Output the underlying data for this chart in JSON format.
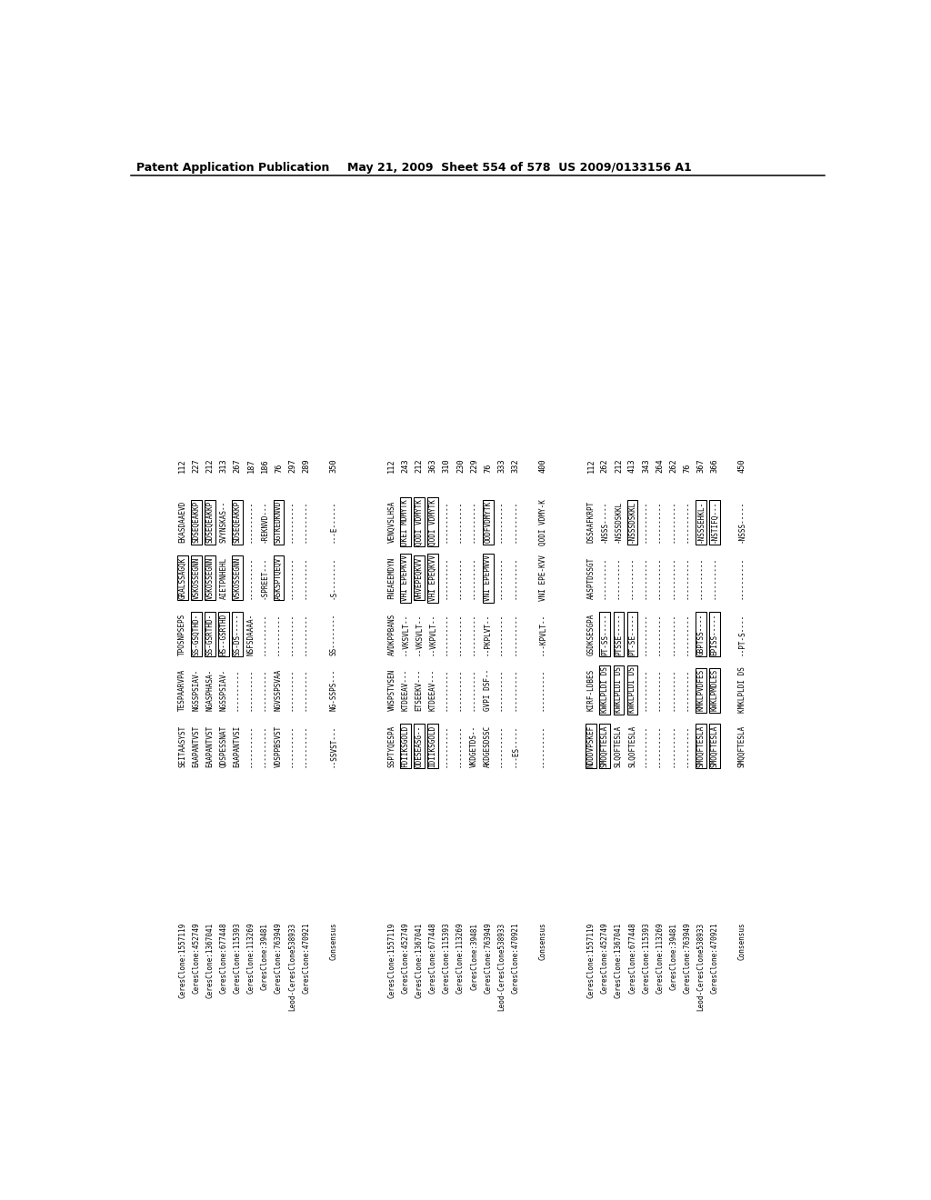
{
  "header_left": "Patent Application Publication",
  "header_right": "May 21, 2009  Sheet 554 of 578  US 2009/0133156 A1",
  "background_color": "#ffffff",
  "text_color": "#000000",
  "blocks": [
    {
      "id": 1,
      "numbers": [
        "112",
        "227",
        "212",
        "313",
        "267",
        "187",
        "186",
        "76",
        "297",
        "289",
        "",
        "350"
      ],
      "labels": [
        "CeresClone:1557119",
        "CeresClone:452749",
        "CeresClone:1367041",
        "CeresClone:677448",
        "CeresClone:115393",
        "CeresClone:113269",
        "CeresClone:39481",
        "CeresClone:763949",
        "Leod-CeresClone538933",
        "CeresClone:470921",
        "",
        "Consensus"
      ],
      "cols": [
        [
          "SEITAASYST",
          "EAAPANTVST",
          "EAAPANTVST",
          "QDSPESSNAT",
          "EAAPANTVSI",
          "----------",
          "----------",
          "VDSPPBSVST",
          "----------",
          "----------",
          "",
          "--SSVST---"
        ],
        [
          "TESPAARVPA",
          "NGSSPSIAV-",
          "NGASPHASA-",
          "NGSSPSIAV-",
          "----------",
          "----------",
          "----------",
          "NGVSSPSVAA",
          "----------",
          "----------",
          "",
          "NG-SSPS---"
        ],
        [
          "TPOSNPSEPS",
          "SS-GSQTHD-",
          "SS-GSRTHD-",
          "HS--GSRTHD",
          "SS-DS-----",
          "NSFSDAAAA-",
          "----------",
          "----------",
          "----------",
          "----------",
          "",
          "SS--------"
        ],
        [
          "GRALSSAGQK",
          "VSKOSSEGNN",
          "VSKOSSEGNN",
          "AIETPNHEHL",
          "VSKOSSEGNN",
          "----------",
          "-SPREET---",
          "ASKSPTQEQV",
          "----------",
          "----------",
          "",
          "-S--------"
        ],
        [
          "EKASDAAEVD",
          "SDSEQEAKKP",
          "SDSEQEAKKP",
          "SVYNSKAS--",
          "SDSEQEAKKP",
          "----------",
          "-REKNVD---",
          "SGTKEDKNVD",
          "----------",
          "----------",
          "",
          "---E------"
        ]
      ],
      "boxed": [
        {
          "col": 2,
          "rows": [
            1,
            2,
            3,
            4
          ]
        },
        {
          "col": 3,
          "rows": [
            0,
            1,
            2,
            4,
            7
          ]
        },
        {
          "col": 4,
          "rows": [
            1,
            2,
            4,
            7
          ]
        }
      ]
    },
    {
      "id": 2,
      "numbers": [
        "112",
        "243",
        "212",
        "363",
        "310",
        "230",
        "229",
        "76",
        "333",
        "332",
        "",
        "400"
      ],
      "labels": [
        "CeresClone:1557119",
        "CeresClone:452749",
        "CeresClone:1367041",
        "CeresClone:677448",
        "CeresClone:115393",
        "CeresClone:113269",
        "CeresClone:39481",
        "CeresClone:763949",
        "Leod-CeresClone538933",
        "CeresClone:470921",
        "",
        "Consensus"
      ],
      "cols": [
        [
          "SSPTYQESPA",
          "FDIIKSGOLD",
          "ODESEASG--",
          "IDIIKSGOLD",
          "----------",
          "----------",
          "VKDGETDS--",
          "AKDGESDSSC",
          "----------",
          "---ES-----",
          "",
          "----------"
        ],
        [
          "VNSPSTVSEN",
          "KTDEEAV---",
          "ETSEEKV---",
          "KTDEEAV---",
          "----------",
          "----------",
          "----------",
          "GVPI DSF--",
          "----------",
          "----------",
          "",
          "----------"
        ],
        [
          "AVDKPPBANS",
          "--VKSVLT--",
          "--VKSVLT--",
          "--VKPVLT--",
          "----------",
          "----------",
          "----------",
          "--PKPLVT--",
          "----------",
          "----------",
          "",
          "---KPVLT--"
        ],
        [
          "FNEAEEMDYN",
          "VHI EPEPKVV",
          "VHVEPEQKVV",
          "VHI EPEQKVV",
          "----------",
          "----------",
          "----------",
          "VNI EPEPNVV",
          "----------",
          "----------",
          "",
          "VNI EPE-KVV"
        ],
        [
          "VENQVSLHSA",
          "DKEI MDMYTK",
          "QODI VDMYTK",
          "QODI VDMYTK",
          "----------",
          "----------",
          "----------",
          "OODFVDMYTK",
          "----------",
          "----------",
          "",
          "QODI VDMY-K"
        ]
      ],
      "boxed": [
        {
          "col": 0,
          "rows": [
            1,
            2,
            3
          ]
        },
        {
          "col": 3,
          "rows": [
            1,
            2,
            3,
            7
          ]
        },
        {
          "col": 4,
          "rows": [
            1,
            2,
            3,
            7
          ]
        }
      ]
    },
    {
      "id": 3,
      "numbers": [
        "112",
        "262",
        "212",
        "413",
        "343",
        "264",
        "262",
        "76",
        "367",
        "366",
        "",
        "450"
      ],
      "labels": [
        "CeresClone:1557119",
        "CeresClone:452749",
        "CeresClone:1367041",
        "CeresClone:677448",
        "CeresClone:115393",
        "CeresClone:113269",
        "CeresClone:39481",
        "CeresClone:763949",
        "Leod-CeresClone538933",
        "CeresClone:470921",
        "",
        "Consensus"
      ],
      "cols": [
        [
          "NDDDVPSKEF",
          "SMOQFTESLA",
          "SLQOFTESLA",
          "SLQOFTESLA",
          "----------",
          "----------",
          "----------",
          "----------",
          "SMOQFTESLA",
          "SMOQFTESLA",
          "",
          "SMQQFTESLA"
        ],
        [
          "KIRF-LDBES",
          "KWKLPLDI DS",
          "KWKLPLDI DS",
          "KWKLPLDI DS",
          "----------",
          "----------",
          "----------",
          "----------",
          "KMKLPVDFES",
          "KWKLPMDLES",
          "",
          "KMKLPLDI DS"
        ],
        [
          "GSDKSESGPA",
          "PT-SS-----",
          "PTSSE-----",
          "PT-SE-----",
          "----------",
          "----------",
          "----------",
          "----------",
          "GBPTSS----",
          "EPISS-----",
          "",
          "--PT-S----"
        ],
        [
          "AASPTDSSGT",
          "----------",
          "----------",
          "----------",
          "----------",
          "----------",
          "----------",
          "----------",
          "----------",
          "----------",
          "",
          "----------"
        ],
        [
          "DSSAAFKRPT",
          "-NSSS-----",
          "-NSSSDSKKL",
          "-NSSSDSKKL",
          "----------",
          "----------",
          "----------",
          "----------",
          "-NSSSEHKL-",
          "-NSTIFQ---",
          "",
          "-NSSS-----"
        ]
      ],
      "boxed": [
        {
          "col": 0,
          "rows": [
            0,
            1,
            8,
            9
          ]
        },
        {
          "col": 1,
          "rows": [
            1,
            2,
            3,
            8,
            9
          ]
        },
        {
          "col": 2,
          "rows": [
            1,
            2,
            3,
            8,
            9
          ]
        },
        {
          "col": 4,
          "rows": [
            3,
            8,
            9
          ]
        }
      ]
    }
  ]
}
